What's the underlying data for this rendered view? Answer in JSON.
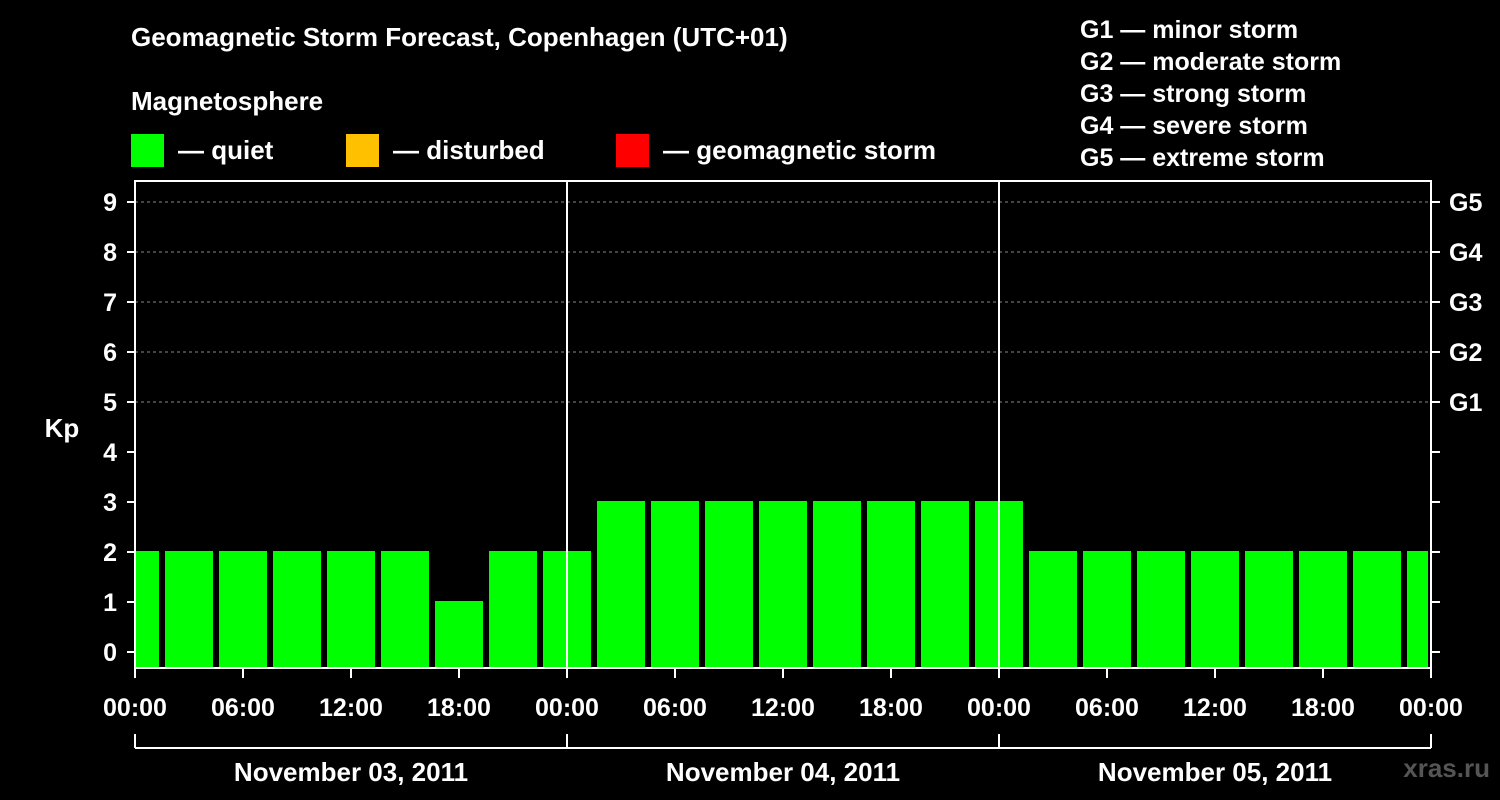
{
  "header": {
    "title": "Geomagnetic Storm Forecast, Copenhagen (UTC+01)",
    "subtitle": "Magnetosphere"
  },
  "legend": [
    {
      "label": "— quiet",
      "color": "#00ff00"
    },
    {
      "label": "— disturbed",
      "color": "#ffc000"
    },
    {
      "label": "— geomagnetic storm",
      "color": "#ff0000"
    }
  ],
  "storm_scale": [
    "G1 — minor storm",
    "G2 — moderate storm",
    "G3 — strong storm",
    "G4 — severe storm",
    "G5 — extreme storm"
  ],
  "watermark": "xras.ru",
  "chart_data": {
    "type": "bar",
    "ylabel": "Kp",
    "ylim": [
      0,
      9
    ],
    "yticks": [
      0,
      1,
      2,
      3,
      4,
      5,
      6,
      7,
      8,
      9
    ],
    "right_axis_labels": [
      {
        "kp": 5,
        "label": "G1"
      },
      {
        "kp": 6,
        "label": "G2"
      },
      {
        "kp": 7,
        "label": "G3"
      },
      {
        "kp": 8,
        "label": "G4"
      },
      {
        "kp": 9,
        "label": "G5"
      }
    ],
    "grid_y": [
      5,
      6,
      7,
      8,
      9
    ],
    "x_tick_labels": [
      "00:00",
      "06:00",
      "12:00",
      "18:00",
      "00:00",
      "06:00",
      "12:00",
      "18:00",
      "00:00",
      "06:00",
      "12:00",
      "18:00",
      "00:00"
    ],
    "days": [
      "November 03, 2011",
      "November 04, 2011",
      "November 05, 2011"
    ],
    "interval_hours": 3,
    "bars": [
      {
        "start_hour": 0,
        "kp": 2,
        "level": "quiet"
      },
      {
        "start_hour": 3,
        "kp": 2,
        "level": "quiet"
      },
      {
        "start_hour": 6,
        "kp": 2,
        "level": "quiet"
      },
      {
        "start_hour": 9,
        "kp": 2,
        "level": "quiet"
      },
      {
        "start_hour": 12,
        "kp": 2,
        "level": "quiet"
      },
      {
        "start_hour": 15,
        "kp": 2,
        "level": "quiet"
      },
      {
        "start_hour": 18,
        "kp": 1,
        "level": "quiet"
      },
      {
        "start_hour": 21,
        "kp": 2,
        "level": "quiet"
      },
      {
        "start_hour": 24,
        "kp": 2,
        "level": "quiet"
      },
      {
        "start_hour": 27,
        "kp": 3,
        "level": "quiet"
      },
      {
        "start_hour": 30,
        "kp": 3,
        "level": "quiet"
      },
      {
        "start_hour": 33,
        "kp": 3,
        "level": "quiet"
      },
      {
        "start_hour": 36,
        "kp": 3,
        "level": "quiet"
      },
      {
        "start_hour": 39,
        "kp": 3,
        "level": "quiet"
      },
      {
        "start_hour": 42,
        "kp": 3,
        "level": "quiet"
      },
      {
        "start_hour": 45,
        "kp": 3,
        "level": "quiet"
      },
      {
        "start_hour": 48,
        "kp": 3,
        "level": "quiet"
      },
      {
        "start_hour": 51,
        "kp": 2,
        "level": "quiet"
      },
      {
        "start_hour": 54,
        "kp": 2,
        "level": "quiet"
      },
      {
        "start_hour": 57,
        "kp": 2,
        "level": "quiet"
      },
      {
        "start_hour": 60,
        "kp": 2,
        "level": "quiet"
      },
      {
        "start_hour": 63,
        "kp": 2,
        "level": "quiet"
      },
      {
        "start_hour": 66,
        "kp": 2,
        "level": "quiet"
      },
      {
        "start_hour": 69,
        "kp": 2,
        "level": "quiet"
      },
      {
        "start_hour": 72,
        "kp": 2,
        "level": "quiet"
      }
    ],
    "colors": {
      "quiet": "#00ff00",
      "disturbed": "#ffc000",
      "storm": "#ff0000"
    }
  }
}
